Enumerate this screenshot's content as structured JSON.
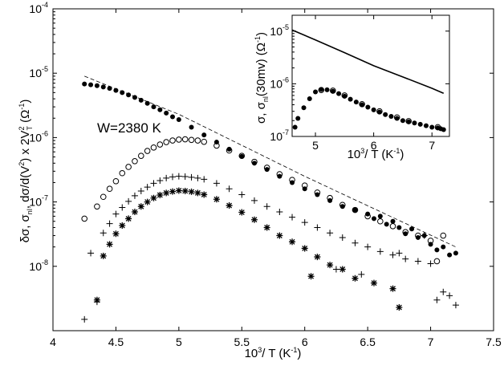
{
  "chart_data": [
    {
      "type": "scatter",
      "scale": "log-y",
      "xlabel": "10³/ T (K⁻¹)",
      "ylabel": "δσ, σnl, dσ/d(V²) x 2V²T (Ω⁻¹)",
      "annotation": "W=2380 K",
      "xlim": [
        4,
        7.5
      ],
      "ylim": [
        1e-09,
        0.0001
      ],
      "xticks": [
        "4",
        "4.5",
        "5",
        "5.5",
        "6",
        "6.5",
        "7",
        "7.5"
      ],
      "yticks": [
        {
          "base": "10",
          "exp": "-8"
        },
        {
          "base": "10",
          "exp": "-7"
        },
        {
          "base": "10",
          "exp": "-6"
        },
        {
          "base": "10",
          "exp": "-5"
        },
        {
          "base": "10",
          "exp": "-4"
        }
      ],
      "series": [
        {
          "marker": "filled-circle",
          "x": [
            4.25,
            4.3,
            4.35,
            4.4,
            4.45,
            4.5,
            4.55,
            4.6,
            4.65,
            4.7,
            4.75,
            4.8,
            4.85,
            4.9,
            4.95,
            5.0,
            5.1,
            5.2,
            5.3,
            5.4,
            5.5,
            5.6,
            5.7,
            5.8,
            5.9,
            6.0,
            6.1,
            6.2,
            6.3,
            6.4,
            6.5,
            6.55,
            6.6,
            6.65,
            6.7,
            6.75,
            6.8,
            6.85,
            6.9,
            6.95,
            7.0,
            7.05,
            7.1,
            7.15,
            7.2
          ],
          "y": [
            6.8e-06,
            6.6e-06,
            6.4e-06,
            6.1e-06,
            5.8e-06,
            5.4e-06,
            5e-06,
            4.6e-06,
            4.2e-06,
            3.8e-06,
            3.4e-06,
            3e-06,
            2.7e-06,
            2.4e-06,
            2.1e-06,
            1.9e-06,
            1.45e-06,
            1.1e-06,
            8.5e-07,
            6.6e-07,
            5.1e-07,
            4e-07,
            3.2e-07,
            2.5e-07,
            2e-07,
            1.6e-07,
            1.3e-07,
            1.05e-07,
            8.5e-08,
            7.5e-08,
            6.5e-08,
            5.5e-08,
            6e-08,
            4.5e-08,
            5e-08,
            4e-08,
            3.2e-08,
            3.8e-08,
            2.8e-08,
            3e-08,
            2.2e-08,
            1.8e-08,
            2e-08,
            1.5e-08,
            1.6e-08
          ]
        },
        {
          "marker": "open-circle",
          "x": [
            4.25,
            4.35,
            4.4,
            4.45,
            4.5,
            4.55,
            4.6,
            4.65,
            4.7,
            4.75,
            4.8,
            4.85,
            4.9,
            4.95,
            5.0,
            5.05,
            5.1,
            5.15,
            5.2,
            5.3,
            5.4,
            5.5,
            5.6,
            5.7,
            5.8,
            5.9,
            6.0,
            6.1,
            6.2,
            6.3,
            6.4,
            6.5,
            6.6,
            6.7,
            6.8,
            6.9,
            7.0,
            7.05,
            7.1
          ],
          "y": [
            5.5e-08,
            8.5e-08,
            1.2e-07,
            1.6e-07,
            2.1e-07,
            2.8e-07,
            3.5e-07,
            4.3e-07,
            5.2e-07,
            6.2e-07,
            7e-07,
            7.8e-07,
            8.5e-07,
            9e-07,
            9.3e-07,
            9.4e-07,
            9.2e-07,
            9e-07,
            8.6e-07,
            7.5e-07,
            6.3e-07,
            5.2e-07,
            4.2e-07,
            3.4e-07,
            2.7e-07,
            2.2e-07,
            1.8e-07,
            1.4e-07,
            1.15e-07,
            9e-08,
            7.5e-08,
            6e-08,
            5e-08,
            4.2e-08,
            3.4e-08,
            3e-08,
            2.5e-08,
            1.2e-08,
            3e-08
          ]
        },
        {
          "marker": "plus",
          "x": [
            4.25,
            4.3,
            4.35,
            4.4,
            4.45,
            4.5,
            4.55,
            4.6,
            4.65,
            4.7,
            4.75,
            4.8,
            4.85,
            4.9,
            4.95,
            5.0,
            5.05,
            5.1,
            5.15,
            5.2,
            5.3,
            5.4,
            5.5,
            5.6,
            5.7,
            5.8,
            5.9,
            6.0,
            6.1,
            6.2,
            6.3,
            6.4,
            6.5,
            6.6,
            6.7,
            6.8,
            6.9,
            7.0,
            7.05,
            7.1,
            7.15,
            7.2,
            6.25,
            6.45,
            6.75,
            6.95
          ],
          "y": [
            1.5e-09,
            1.6e-08,
            2.8e-09,
            3.3e-08,
            4.6e-08,
            6.5e-08,
            8.2e-08,
            1.02e-07,
            1.25e-07,
            1.48e-07,
            1.7e-07,
            1.95e-07,
            2.15e-07,
            2.35e-07,
            2.45e-07,
            2.5e-07,
            2.48e-07,
            2.42e-07,
            2.35e-07,
            2.25e-07,
            1.95e-07,
            1.6e-07,
            1.3e-07,
            1.05e-07,
            8.5e-08,
            7e-08,
            5.8e-08,
            4.8e-08,
            4e-08,
            3.3e-08,
            2.8e-08,
            2.3e-08,
            2e-08,
            1.7e-08,
            1.5e-08,
            1.3e-08,
            1.2e-08,
            1.1e-08,
            3e-09,
            4e-09,
            3.5e-09,
            2.5e-09,
            9e-09,
            7.5e-09,
            1.6e-08,
            3e-08
          ]
        },
        {
          "marker": "asterisk",
          "x": [
            4.35,
            4.4,
            4.45,
            4.5,
            4.55,
            4.6,
            4.65,
            4.7,
            4.75,
            4.8,
            4.85,
            4.9,
            4.95,
            5.0,
            5.05,
            5.1,
            5.15,
            5.2,
            5.3,
            5.4,
            5.5,
            5.6,
            5.7,
            5.8,
            5.9,
            6.0,
            6.05,
            6.1,
            6.2,
            6.3,
            6.4,
            6.55,
            6.7,
            6.75
          ],
          "y": [
            3e-09,
            1.45e-08,
            2.2e-08,
            3.2e-08,
            4.3e-08,
            5.5e-08,
            7e-08,
            8.5e-08,
            1e-07,
            1.15e-07,
            1.28e-07,
            1.38e-07,
            1.45e-07,
            1.5e-07,
            1.48e-07,
            1.44e-07,
            1.38e-07,
            1.3e-07,
            1.1e-07,
            8.8e-08,
            6.9e-08,
            5.3e-08,
            4e-08,
            3e-08,
            2.4e-08,
            1.9e-08,
            7e-09,
            1.4e-08,
            1.05e-08,
            9e-09,
            6.5e-09,
            5.5e-09,
            4.5e-09,
            2.3e-09
          ]
        },
        {
          "marker": "dashed-line",
          "x": [
            4.25,
            5.0,
            6.0,
            7.2
          ],
          "y": [
            9e-06,
            2.3e-06,
            2.5e-07,
            2e-08
          ]
        }
      ]
    },
    {
      "type": "scatter",
      "scale": "log-y",
      "xlabel": "10³/ T (K⁻¹)",
      "ylabel": "σ, σnl(30mv) (Ω⁻¹)",
      "xlim": [
        4.6,
        7.3
      ],
      "ylim": [
        1e-07,
        2e-05
      ],
      "xticks": [
        "5",
        "6",
        "7"
      ],
      "yticks": [
        {
          "base": "10",
          "exp": "-7"
        },
        {
          "base": "10",
          "exp": "-6"
        },
        {
          "base": "10",
          "exp": "-5"
        }
      ],
      "series": [
        {
          "marker": "line",
          "x": [
            4.6,
            5.0,
            5.5,
            6.0,
            6.5,
            7.0,
            7.2
          ],
          "y": [
            1.05e-05,
            6.8e-06,
            3.9e-06,
            2.2e-06,
            1.35e-06,
            8.2e-07,
            6.6e-07
          ]
        },
        {
          "marker": "filled-circle",
          "x": [
            4.65,
            4.7,
            4.8,
            4.9,
            5.0,
            5.1,
            5.2,
            5.3,
            5.4,
            5.5,
            5.6,
            5.7,
            5.8,
            5.9,
            6.0,
            6.1,
            6.2,
            6.3,
            6.4,
            6.5,
            6.6,
            6.7,
            6.8,
            6.9,
            7.0,
            7.1,
            7.15,
            7.2
          ],
          "y": [
            1.5e-07,
            2.2e-07,
            3.5e-07,
            5.2e-07,
            7e-07,
            7.8e-07,
            7.7e-07,
            7.2e-07,
            6.5e-07,
            5.8e-07,
            5.1e-07,
            4.5e-07,
            4e-07,
            3.6e-07,
            3.2e-07,
            2.9e-07,
            2.6e-07,
            2.4e-07,
            2.2e-07,
            2e-07,
            1.9e-07,
            1.8e-07,
            1.7e-07,
            1.6e-07,
            1.5e-07,
            1.45e-07,
            1.4e-07,
            1.35e-07
          ]
        },
        {
          "marker": "open-circle",
          "x": [
            5.1,
            5.3,
            5.5,
            5.8,
            6.1,
            6.4,
            6.6,
            7.1
          ],
          "y": [
            7.6e-07,
            7.4e-07,
            6e-07,
            4.1e-07,
            3e-07,
            2.3e-07,
            1.95e-07,
            1.5e-07
          ]
        }
      ]
    }
  ]
}
